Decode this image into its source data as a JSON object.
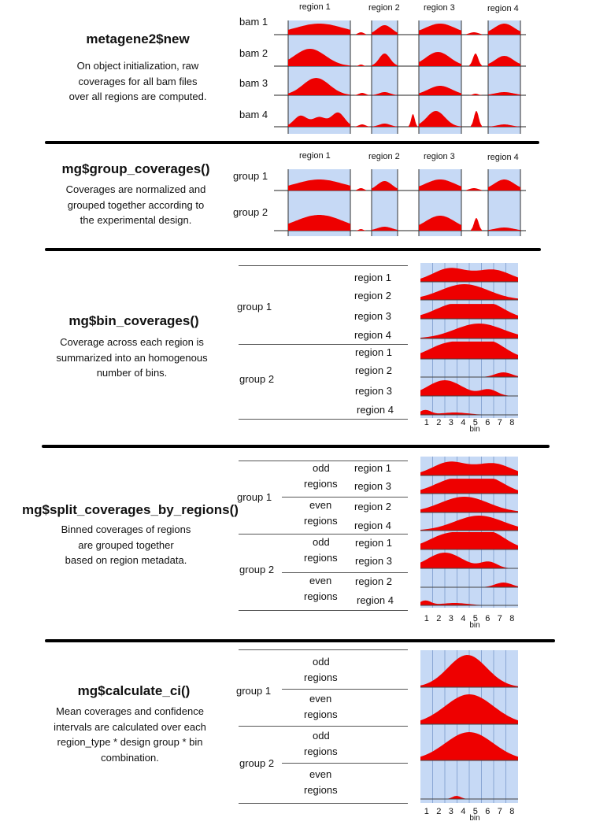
{
  "section1": {
    "title": "metagene2$new",
    "desc_lines": [
      "On object initialization, raw",
      "coverages for all bam files",
      "over all regions are computed."
    ],
    "regions": [
      "region 1",
      "region 2",
      "region 3",
      "region 4"
    ],
    "rows": [
      "bam 1",
      "bam 2",
      "bam 3",
      "bam 4"
    ]
  },
  "section2": {
    "title": "mg$group_coverages()",
    "desc_lines": [
      "Coverages are normalized and",
      "grouped together according to",
      "the experimental design."
    ],
    "regions": [
      "region 1",
      "region 2",
      "region 3",
      "region 4"
    ],
    "rows": [
      "group 1",
      "group 2"
    ]
  },
  "section3": {
    "title": "mg$bin_coverages()",
    "desc_lines": [
      "Coverage across each region is",
      "summarized into an homogenous",
      "number of bins."
    ],
    "groups": [
      "group 1",
      "group 2"
    ],
    "region_labels": [
      "region 1",
      "region 2",
      "region 3",
      "region 4",
      "region 1",
      "region 2",
      "region 3",
      "region 4"
    ],
    "bins": [
      "1",
      "2",
      "3",
      "4",
      "5",
      "6",
      "7",
      "8"
    ],
    "bin_label": "bin"
  },
  "section4": {
    "title": "mg$split_coverages_by_regions()",
    "desc_lines": [
      "Binned coverages of regions",
      "are grouped together",
      "based on region metadata."
    ],
    "groups": [
      "group 1",
      "group 2"
    ],
    "subgroups": [
      "odd",
      "regions",
      "even",
      "regions",
      "odd",
      "regions",
      "even",
      "regions"
    ],
    "region_labels": [
      "region 1",
      "region 3",
      "region 2",
      "region 4",
      "region 1",
      "region 3",
      "region 2",
      "region 4"
    ],
    "bins": [
      "1",
      "2",
      "3",
      "4",
      "5",
      "6",
      "7",
      "8"
    ],
    "bin_label": "bin"
  },
  "section5": {
    "title": "mg$calculate_ci()",
    "desc_lines": [
      "Mean coverages and confidence",
      "intervals are calculated over each",
      "region_type * design group * bin",
      "combination."
    ],
    "groups": [
      "group 1",
      "group 2"
    ],
    "subgroups": [
      "odd",
      "regions",
      "even",
      "regions",
      "odd",
      "regions",
      "even",
      "regions"
    ],
    "bins": [
      "1",
      "2",
      "3",
      "4",
      "5",
      "6",
      "7",
      "8"
    ],
    "bin_label": "bin"
  },
  "colors": {
    "fill": "#ee0000",
    "highlight": "#c6d9f5",
    "grid": "#8aa7d4",
    "separator": "#000000"
  }
}
